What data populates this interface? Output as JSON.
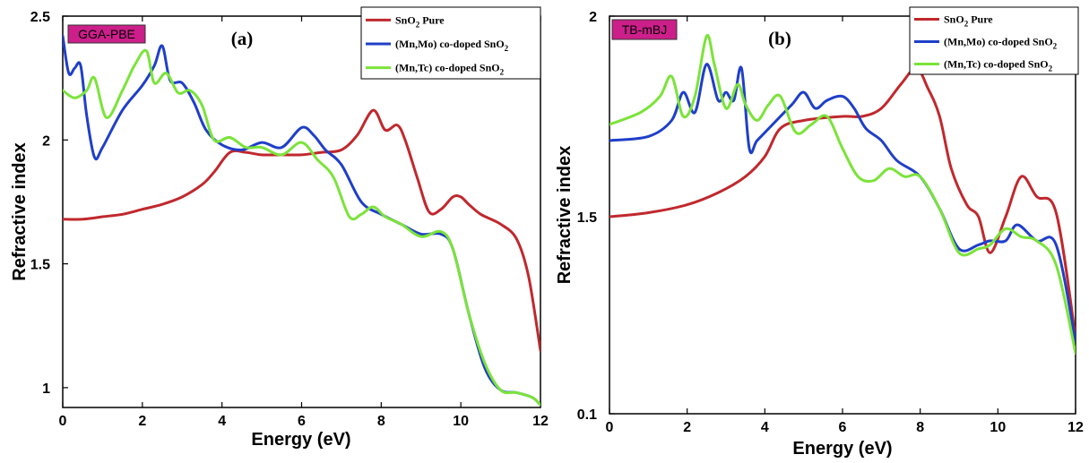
{
  "chart_data": [
    {
      "type": "line",
      "panel_label": "(a)",
      "method": "GGA-PBE",
      "xlabel": "Energy (eV)",
      "ylabel": "Refractive index",
      "xlim": [
        0,
        12
      ],
      "ylim": [
        0.92,
        2.5
      ],
      "x_ticks": [
        0,
        2,
        4,
        6,
        8,
        10,
        12
      ],
      "x_tick_labels": [
        "0",
        "2",
        "4",
        "6",
        "8",
        "10",
        "12"
      ],
      "y_ticks": [
        1,
        1.5,
        2,
        2.5
      ],
      "y_tick_labels": [
        "1",
        "1.5",
        "2",
        "2.5"
      ],
      "legend_position": "top-right",
      "colors": {
        "method_box": "#cc1f8a",
        "axis": "#000000"
      },
      "series": [
        {
          "name": "SnO2 Pure",
          "color": "#c0282d",
          "x": [
            0,
            0.5,
            1,
            1.5,
            2,
            2.5,
            3,
            3.5,
            3.8,
            4.2,
            4.6,
            5,
            5.5,
            6,
            6.5,
            7,
            7.4,
            7.8,
            8.1,
            8.4,
            8.6,
            8.9,
            9.2,
            9.5,
            9.8,
            10,
            10.2,
            10.5,
            11,
            11.4,
            11.7,
            12
          ],
          "y": [
            1.68,
            1.68,
            1.69,
            1.7,
            1.72,
            1.74,
            1.77,
            1.82,
            1.87,
            1.95,
            1.95,
            1.94,
            1.94,
            1.94,
            1.95,
            1.96,
            2.02,
            2.12,
            2.04,
            2.06,
            2.0,
            1.85,
            1.71,
            1.72,
            1.77,
            1.77,
            1.74,
            1.7,
            1.66,
            1.6,
            1.45,
            1.15
          ]
        },
        {
          "name": "(Mn,Mo) co-doped SnO2",
          "color": "#1f3fc8",
          "x": [
            0,
            0.15,
            0.3,
            0.45,
            0.6,
            0.8,
            1,
            1.5,
            2,
            2.3,
            2.5,
            2.7,
            3,
            3.3,
            3.6,
            4,
            4.5,
            5,
            5.5,
            6,
            6.3,
            6.6,
            7,
            7.5,
            8,
            8.5,
            9,
            9.5,
            9.8,
            10.2,
            10.6,
            11,
            11.4,
            11.8,
            12
          ],
          "y": [
            2.42,
            2.27,
            2.29,
            2.3,
            2.1,
            1.93,
            1.97,
            2.12,
            2.22,
            2.3,
            2.38,
            2.24,
            2.23,
            2.15,
            2.04,
            1.98,
            1.96,
            1.99,
            1.97,
            2.05,
            2.02,
            1.96,
            1.9,
            1.75,
            1.7,
            1.66,
            1.62,
            1.62,
            1.56,
            1.3,
            1.08,
            0.99,
            0.98,
            0.96,
            0.93
          ]
        },
        {
          "name": "(Mn,Tc) co-doped SnO2",
          "color": "#7be33a",
          "x": [
            0,
            0.3,
            0.6,
            0.8,
            1.1,
            1.5,
            1.8,
            2.1,
            2.3,
            2.6,
            2.9,
            3.2,
            3.5,
            3.8,
            4.2,
            4.6,
            5,
            5.5,
            6,
            6.4,
            6.8,
            7.2,
            7.5,
            7.8,
            8.1,
            8.5,
            9,
            9.5,
            9.8,
            10.2,
            10.6,
            11,
            11.4,
            11.8,
            12
          ],
          "y": [
            2.2,
            2.17,
            2.2,
            2.25,
            2.09,
            2.2,
            2.3,
            2.36,
            2.23,
            2.27,
            2.19,
            2.2,
            2.14,
            2.0,
            2.01,
            1.97,
            1.97,
            1.94,
            1.99,
            1.92,
            1.85,
            1.69,
            1.7,
            1.73,
            1.69,
            1.66,
            1.61,
            1.63,
            1.56,
            1.3,
            1.1,
            0.99,
            0.98,
            0.96,
            0.93
          ]
        }
      ]
    },
    {
      "type": "line",
      "panel_label": "(b)",
      "method": "TB-mBJ",
      "xlabel": "Energy (eV)",
      "ylabel": "Refractive index",
      "xlim": [
        0,
        12
      ],
      "ylim_tick_labels_note": "nonuniform printed ticks",
      "x_ticks": [
        0,
        2,
        4,
        6,
        8,
        10,
        12
      ],
      "x_tick_labels": [
        "0",
        "2",
        "4",
        "6",
        "8",
        "10",
        "12"
      ],
      "y_tick_labels": [
        "0.1",
        "1.5",
        "2"
      ],
      "legend_position": "top-right",
      "colors": {
        "method_box": "#cc1f8a",
        "axis": "#000000"
      },
      "series": [
        {
          "name": "SnO2 Pure",
          "color": "#c0282d",
          "x": [
            0,
            1,
            2,
            2.8,
            3.5,
            4,
            4.4,
            5,
            6,
            6.5,
            7,
            7.5,
            7.9,
            8.2,
            8.5,
            8.8,
            9.2,
            9.5,
            9.8,
            10.2,
            10.6,
            11,
            11.5,
            12
          ],
          "y": [
            1.5,
            1.51,
            1.53,
            1.56,
            1.6,
            1.65,
            1.72,
            1.74,
            1.75,
            1.75,
            1.77,
            1.83,
            1.87,
            1.82,
            1.75,
            1.62,
            1.53,
            1.5,
            1.41,
            1.5,
            1.6,
            1.55,
            1.51,
            1.2
          ]
        },
        {
          "name": "(Mn,Mo) co-doped SnO2",
          "color": "#1f3fc8",
          "x": [
            0,
            1,
            1.6,
            1.9,
            2.2,
            2.5,
            2.8,
            3,
            3.2,
            3.4,
            3.6,
            3.8,
            4.2,
            4.7,
            5,
            5.3,
            5.6,
            6,
            6.3,
            6.6,
            7,
            7.4,
            8,
            8.5,
            9,
            9.5,
            9.8,
            10.2,
            10.5,
            11,
            11.5,
            12
          ],
          "y": [
            1.69,
            1.7,
            1.74,
            1.81,
            1.76,
            1.88,
            1.79,
            1.81,
            1.79,
            1.87,
            1.67,
            1.69,
            1.73,
            1.78,
            1.81,
            1.77,
            1.79,
            1.8,
            1.77,
            1.72,
            1.69,
            1.64,
            1.6,
            1.52,
            1.42,
            1.43,
            1.44,
            1.44,
            1.48,
            1.44,
            1.43,
            1.19
          ]
        },
        {
          "name": "(Mn,Tc) co-doped SnO2",
          "color": "#7be33a",
          "x": [
            0,
            0.8,
            1.3,
            1.6,
            1.9,
            2.2,
            2.5,
            2.7,
            3,
            3.3,
            3.5,
            3.8,
            4.1,
            4.4,
            4.8,
            5.2,
            5.6,
            6,
            6.4,
            6.8,
            7.2,
            7.6,
            8,
            8.5,
            9,
            9.5,
            9.8,
            10.2,
            10.6,
            11,
            11.5,
            12
          ],
          "y": [
            1.73,
            1.76,
            1.8,
            1.85,
            1.75,
            1.8,
            1.95,
            1.88,
            1.77,
            1.83,
            1.78,
            1.74,
            1.78,
            1.8,
            1.71,
            1.73,
            1.75,
            1.67,
            1.6,
            1.59,
            1.62,
            1.6,
            1.6,
            1.52,
            1.41,
            1.42,
            1.43,
            1.47,
            1.45,
            1.44,
            1.38,
            1.16
          ]
        }
      ]
    }
  ]
}
